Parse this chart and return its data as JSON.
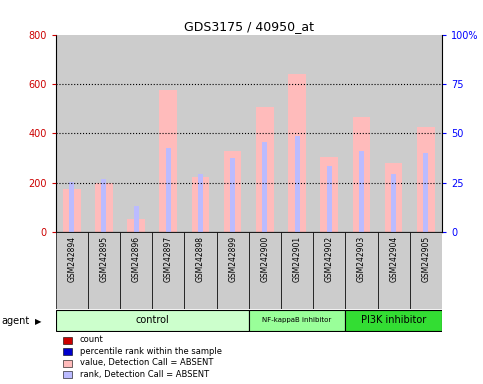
{
  "title": "GDS3175 / 40950_at",
  "samples": [
    "GSM242894",
    "GSM242895",
    "GSM242896",
    "GSM242897",
    "GSM242898",
    "GSM242899",
    "GSM242900",
    "GSM242901",
    "GSM242902",
    "GSM242903",
    "GSM242904",
    "GSM242905"
  ],
  "value_absent": [
    175,
    200,
    55,
    575,
    225,
    330,
    505,
    640,
    305,
    465,
    280,
    425
  ],
  "rank_absent": [
    205,
    215,
    105,
    340,
    235,
    300,
    365,
    390,
    270,
    330,
    235,
    320
  ],
  "groups": [
    {
      "label": "control",
      "start": 0,
      "end": 6,
      "color": "#ccffcc"
    },
    {
      "label": "NF-kappaB inhibitor",
      "start": 6,
      "end": 9,
      "color": "#99ff99"
    },
    {
      "label": "PI3K inhibitor",
      "start": 9,
      "end": 12,
      "color": "#33dd33"
    }
  ],
  "ylim_left": [
    0,
    800
  ],
  "ylim_right": [
    0,
    100
  ],
  "yticks_left": [
    0,
    200,
    400,
    600,
    800
  ],
  "yticks_right": [
    0,
    25,
    50,
    75,
    100
  ],
  "bar_color_absent": "#ffbbbb",
  "rank_color_absent": "#bbbbff",
  "count_color": "#cc0000",
  "percentile_color": "#0000cc",
  "background_color": "#ffffff",
  "col_bg_even": "#cccccc",
  "col_bg_odd": "#aaaaaa",
  "grid_color": "#000000",
  "agent_label": "agent",
  "legend_items": [
    {
      "label": "count",
      "color": "#cc0000"
    },
    {
      "label": "percentile rank within the sample",
      "color": "#0000cc"
    },
    {
      "label": "value, Detection Call = ABSENT",
      "color": "#ffbbbb"
    },
    {
      "label": "rank, Detection Call = ABSENT",
      "color": "#bbbbff"
    }
  ]
}
